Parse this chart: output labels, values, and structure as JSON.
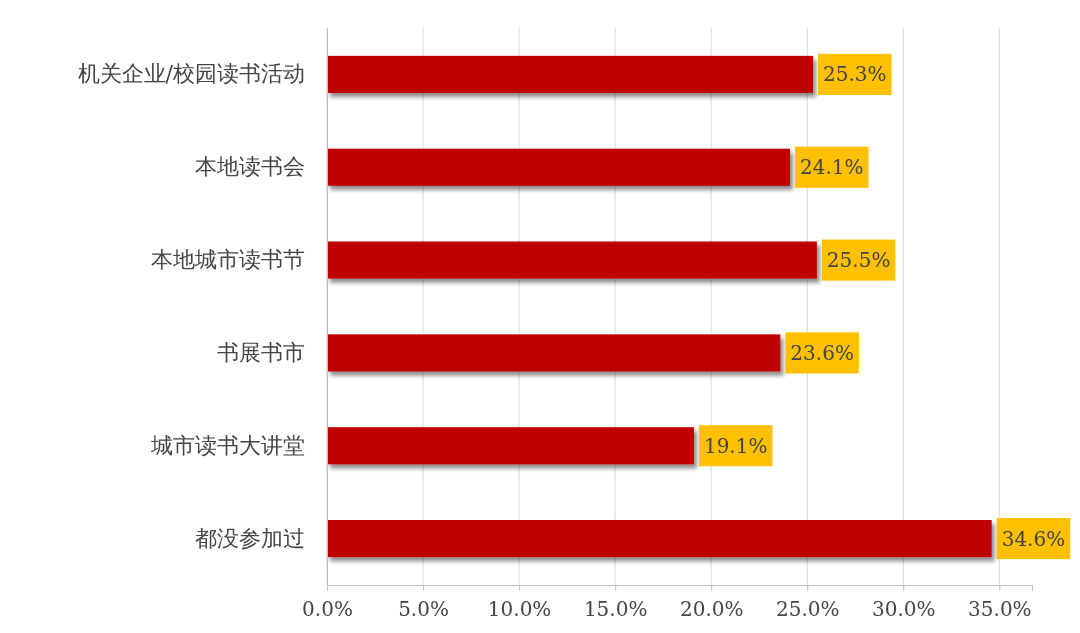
{
  "chart_data": {
    "type": "bar",
    "orientation": "horizontal",
    "categories": [
      "机关企业/校园读书活动",
      "本地读书会",
      "本地城市读书节",
      "书展书市",
      "城市读书大讲堂",
      "都没参加过"
    ],
    "values": [
      25.3,
      24.1,
      25.5,
      23.6,
      19.1,
      34.6
    ],
    "color": "#c00000",
    "value_labels": [
      "25.3%",
      "24.1%",
      "25.5%",
      "23.6%",
      "19.1%",
      "34.6%"
    ],
    "xlim": [
      0,
      36.7
    ],
    "xticks": [
      {
        "value": 0,
        "label": "0.0%"
      },
      {
        "value": 5,
        "label": "5.0%"
      },
      {
        "value": 10,
        "label": "10.0%"
      },
      {
        "value": 15,
        "label": "15.0%"
      },
      {
        "value": 20,
        "label": "20.0%"
      },
      {
        "value": 25,
        "label": "25.0%"
      },
      {
        "value": 30,
        "label": "30.0%"
      },
      {
        "value": 35,
        "label": "35.0%"
      }
    ],
    "grid": "x"
  }
}
